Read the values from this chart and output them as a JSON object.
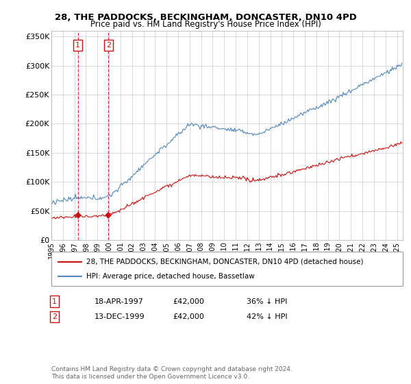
{
  "title": "28, THE PADDOCKS, BECKINGHAM, DONCASTER, DN10 4PD",
  "subtitle": "Price paid vs. HM Land Registry's House Price Index (HPI)",
  "background_color": "#ffffff",
  "yticks": [
    0,
    50000,
    100000,
    150000,
    200000,
    250000,
    300000,
    350000
  ],
  "ytick_labels": [
    "£0",
    "£50K",
    "£100K",
    "£150K",
    "£200K",
    "£250K",
    "£300K",
    "£350K"
  ],
  "transactions": [
    {
      "label": "1",
      "date_num": 1997.29,
      "price": 42000
    },
    {
      "label": "2",
      "date_num": 1999.95,
      "price": 42000
    }
  ],
  "transaction_table": [
    {
      "num": "1",
      "date": "18-APR-1997",
      "price": "£42,000",
      "hpi": "36% ↓ HPI"
    },
    {
      "num": "2",
      "date": "13-DEC-1999",
      "price": "£42,000",
      "hpi": "42% ↓ HPI"
    }
  ],
  "legend_entry1": "28, THE PADDOCKS, BECKINGHAM, DONCASTER, DN10 4PD (detached house)",
  "legend_entry2": "HPI: Average price, detached house, Bassetlaw",
  "footer": "Contains HM Land Registry data © Crown copyright and database right 2024.\nThis data is licensed under the Open Government Licence v3.0.",
  "hpi_color": "#5588bb",
  "sale_color": "#cc1111",
  "shade_color": "#ddeeff",
  "grid_color": "#cccccc"
}
